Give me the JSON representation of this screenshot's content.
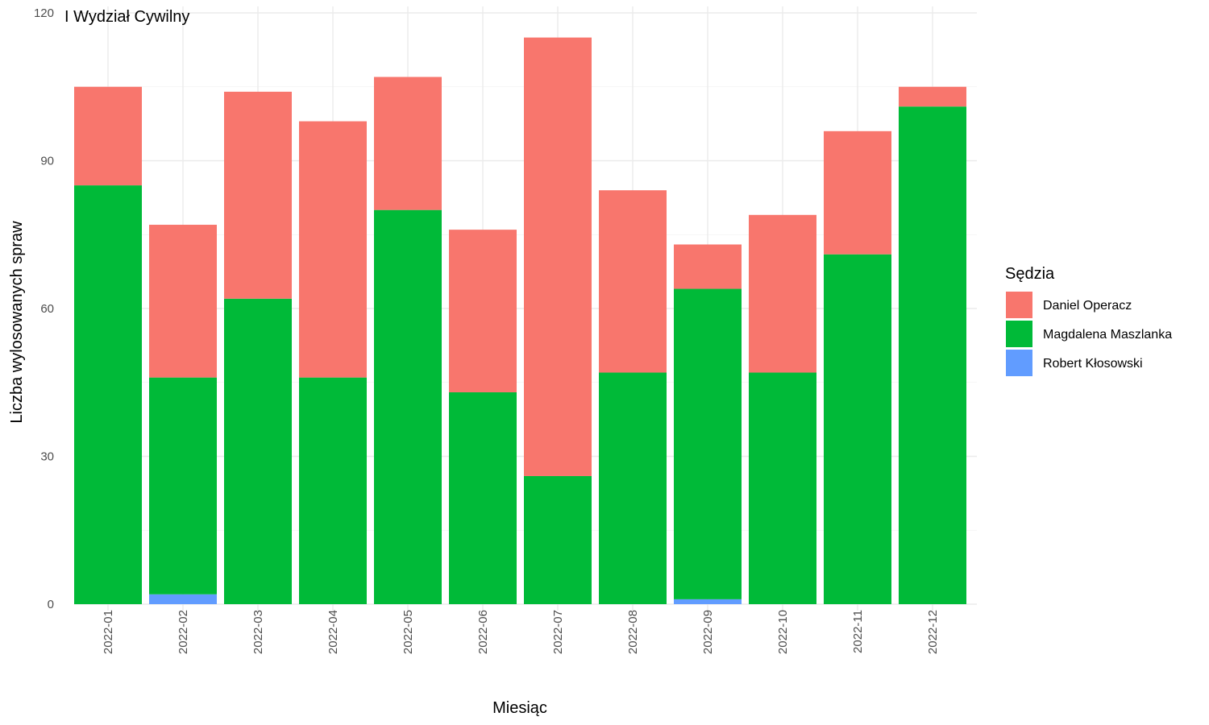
{
  "chart_data": {
    "type": "bar",
    "stacked": true,
    "title": "I Wydział Cywilny",
    "xlabel": "Miesiąc",
    "ylabel": "Liczba wylosowanych spraw",
    "ylim": [
      0,
      120
    ],
    "yticks": [
      0,
      30,
      60,
      90,
      120
    ],
    "grid": true,
    "legend_position": "right",
    "legend_title": "Sędzia",
    "categories": [
      "2022-01",
      "2022-02",
      "2022-03",
      "2022-04",
      "2022-05",
      "2022-06",
      "2022-07",
      "2022-08",
      "2022-09",
      "2022-10",
      "2022-11",
      "2022-12"
    ],
    "series": [
      {
        "name": "Robert Kłosowski",
        "color": "#619CFF",
        "values": [
          0,
          2,
          0,
          0,
          0,
          0,
          0,
          0,
          1,
          0,
          0,
          0
        ]
      },
      {
        "name": "Magdalena Maszlanka",
        "color": "#00BA38",
        "values": [
          85,
          44,
          62,
          46,
          80,
          43,
          26,
          47,
          63,
          47,
          71,
          101
        ]
      },
      {
        "name": "Daniel Operacz",
        "color": "#F8766D",
        "values": [
          20,
          31,
          42,
          52,
          27,
          33,
          89,
          37,
          9,
          32,
          25,
          4
        ]
      }
    ],
    "legend_order": [
      "Daniel Operacz",
      "Magdalena Maszlanka",
      "Robert Kłosowski"
    ]
  }
}
